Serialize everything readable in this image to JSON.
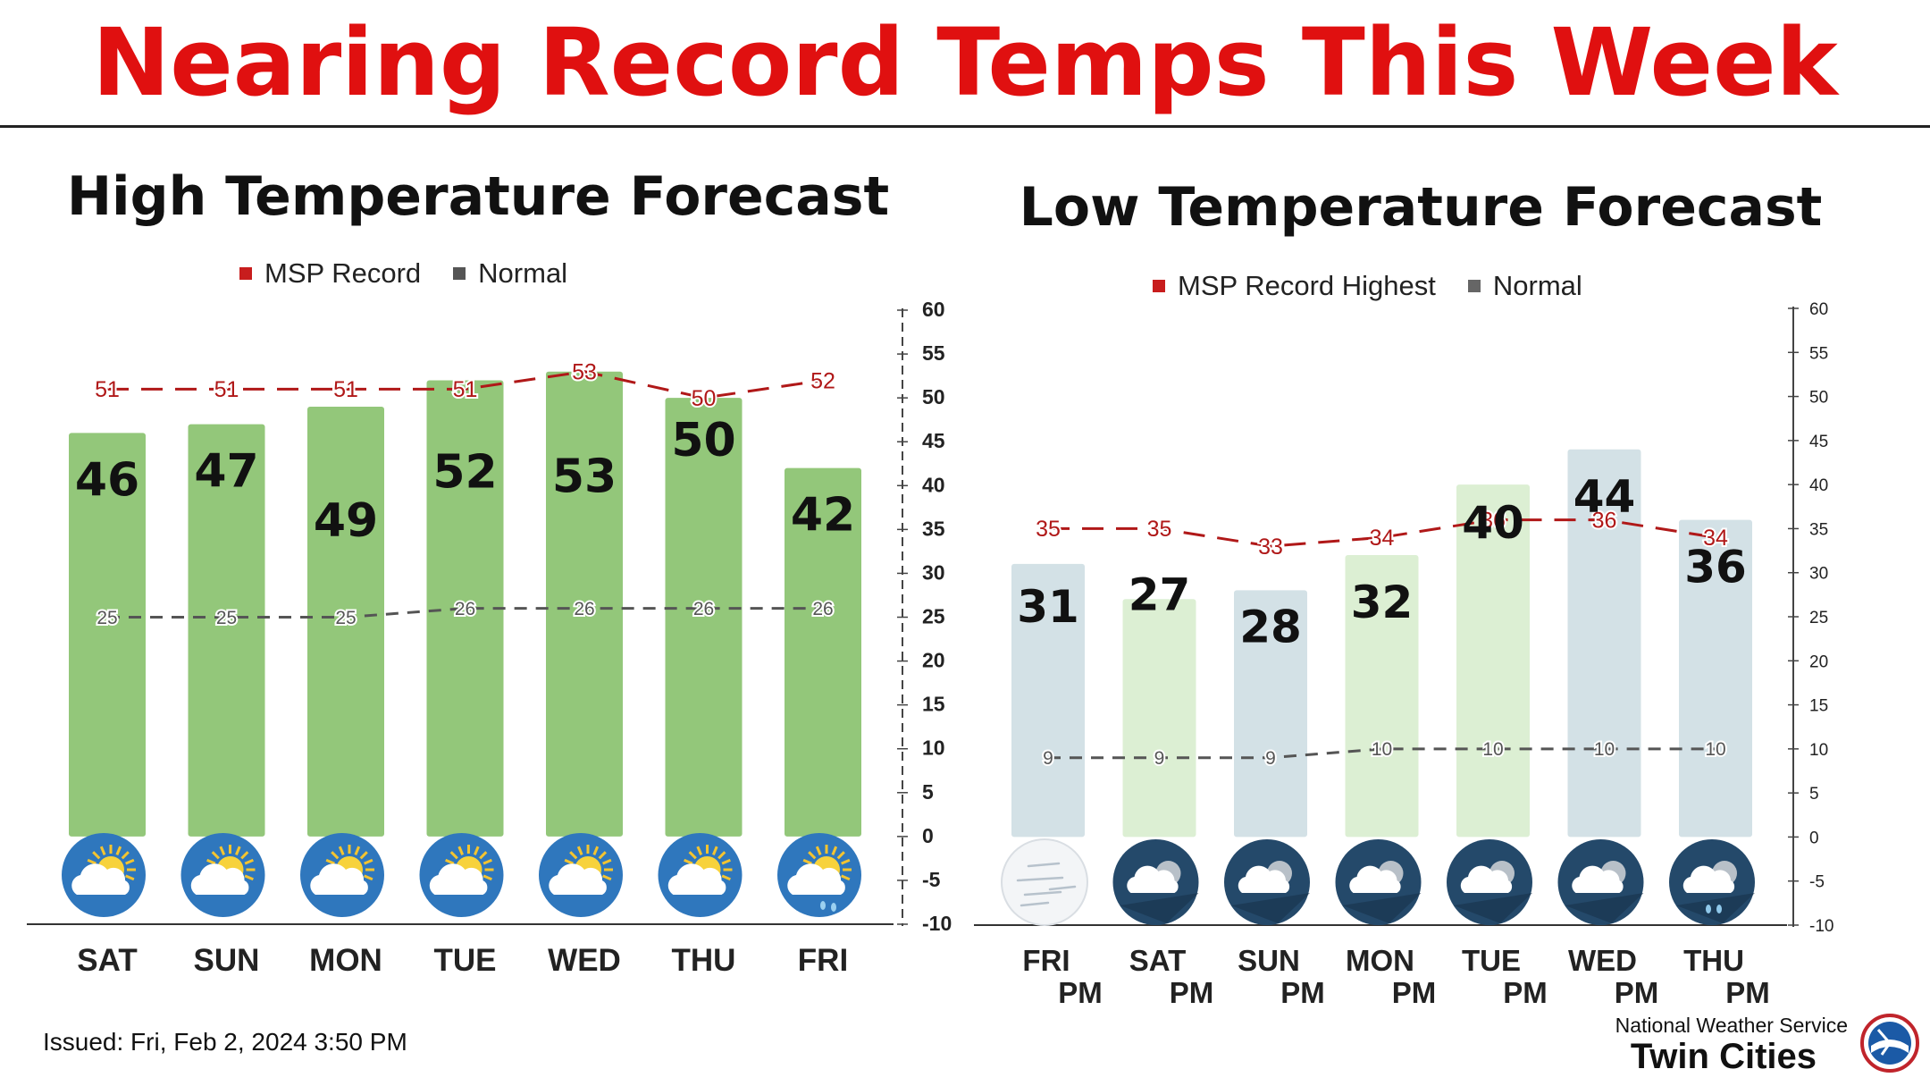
{
  "header": {
    "title": "Nearing Record Temps This Week"
  },
  "footer": {
    "issued": "Issued: Fri, Feb 2, 2024 3:50 PM",
    "org": "National Weather Service",
    "office": "Twin Cities"
  },
  "colors": {
    "title_red": "#e01010",
    "record_red": "#b01818",
    "normal_gray": "#555555",
    "high_bar": "#93c77a",
    "low_bar_cloudy": "#d3e1e6",
    "low_bar_green": "#dcefd3",
    "icon_blue": "#2f77bd",
    "icon_navy": "#24496a"
  },
  "chart_data": [
    {
      "type": "bar",
      "title": "High Temperature Forecast",
      "categories": [
        "SAT",
        "SUN",
        "MON",
        "TUE",
        "WED",
        "THU",
        "FRI"
      ],
      "values": [
        46,
        47,
        49,
        52,
        53,
        50,
        42
      ],
      "series": [
        {
          "name": "MSP Record",
          "values": [
            51,
            51,
            51,
            51,
            53,
            50,
            52
          ]
        },
        {
          "name": "Normal",
          "values": [
            25,
            25,
            25,
            26,
            26,
            26,
            26
          ]
        }
      ],
      "icons": [
        "sun-cloud-icon",
        "sun-cloud-icon",
        "sun-cloud-icon",
        "sun-cloud-icon",
        "sun-cloud-icon",
        "sun-cloud-icon",
        "sun-cloud-rain-icon"
      ],
      "ylim": [
        -10,
        60
      ],
      "yticks": [
        -10,
        -5,
        0,
        5,
        10,
        15,
        20,
        25,
        30,
        35,
        40,
        45,
        50,
        55,
        60
      ],
      "legend": "top",
      "grid": false
    },
    {
      "type": "bar",
      "title": "Low Temperature Forecast",
      "categories": [
        [
          "FRI",
          "PM"
        ],
        [
          "SAT",
          "PM"
        ],
        [
          "SUN",
          "PM"
        ],
        [
          "MON",
          "PM"
        ],
        [
          "TUE",
          "PM"
        ],
        [
          "WED",
          "PM"
        ],
        [
          "THU",
          "PM"
        ]
      ],
      "values": [
        31,
        27,
        28,
        32,
        40,
        44,
        36
      ],
      "bar_colors": [
        "#d3e1e6",
        "#dcefd3",
        "#d3e1e6",
        "#dcefd3",
        "#dcefd3",
        "#d3e1e6",
        "#d3e1e6"
      ],
      "series": [
        {
          "name": "MSP Record Highest",
          "values": [
            35,
            35,
            33,
            34,
            36,
            36,
            34
          ]
        },
        {
          "name": "Normal",
          "values": [
            9,
            9,
            9,
            10,
            10,
            10,
            10
          ]
        }
      ],
      "icons": [
        "wind-icon",
        "cloud-moon-icon",
        "cloud-moon-icon",
        "cloud-moon-icon",
        "cloud-moon-icon",
        "cloud-moon-icon",
        "cloud-moon-rain-icon"
      ],
      "ylim": [
        -10,
        60
      ],
      "yticks": [
        -10,
        -5,
        0,
        5,
        10,
        15,
        20,
        25,
        30,
        35,
        40,
        45,
        50,
        55,
        60
      ],
      "legend": "top",
      "grid": false
    }
  ]
}
